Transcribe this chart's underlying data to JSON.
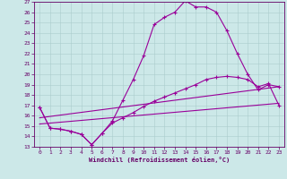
{
  "xlabel": "Windchill (Refroidissement éolien,°C)",
  "background_color": "#cce8e8",
  "grid_color": "#aacccc",
  "line_color": "#990099",
  "xlim": [
    -0.5,
    23.5
  ],
  "ylim": [
    13,
    27
  ],
  "xticks": [
    0,
    1,
    2,
    3,
    4,
    5,
    6,
    7,
    8,
    9,
    10,
    11,
    12,
    13,
    14,
    15,
    16,
    17,
    18,
    19,
    20,
    21,
    22,
    23
  ],
  "yticks": [
    13,
    14,
    15,
    16,
    17,
    18,
    19,
    20,
    21,
    22,
    23,
    24,
    25,
    26,
    27
  ],
  "series": [
    {
      "x": [
        0,
        1,
        2,
        3,
        4,
        5,
        6,
        7,
        8,
        9,
        10,
        11,
        12,
        13,
        14,
        15,
        16,
        17,
        18,
        19,
        20,
        21,
        22,
        23
      ],
      "y": [
        16.8,
        14.8,
        14.7,
        14.5,
        14.2,
        13.2,
        14.3,
        15.5,
        17.5,
        19.5,
        21.8,
        24.8,
        25.5,
        26.0,
        27.1,
        26.5,
        26.5,
        26.0,
        24.2,
        22.0,
        20.0,
        18.5,
        19.0,
        18.8
      ],
      "marker": "+"
    },
    {
      "x": [
        0,
        1,
        2,
        3,
        4,
        5,
        6,
        7,
        8,
        9,
        10,
        11,
        12,
        13,
        14,
        15,
        16,
        17,
        18,
        19,
        20,
        21,
        22,
        23
      ],
      "y": [
        16.8,
        14.8,
        14.7,
        14.5,
        14.2,
        13.2,
        14.3,
        15.3,
        15.8,
        16.3,
        16.9,
        17.4,
        17.8,
        18.2,
        18.6,
        19.0,
        19.5,
        19.7,
        19.8,
        19.7,
        19.5,
        18.8,
        19.1,
        17.0
      ],
      "marker": "+"
    },
    {
      "x": [
        0,
        23
      ],
      "y": [
        15.8,
        18.8
      ],
      "marker": null
    },
    {
      "x": [
        0,
        23
      ],
      "y": [
        15.2,
        17.2
      ],
      "marker": null
    }
  ]
}
